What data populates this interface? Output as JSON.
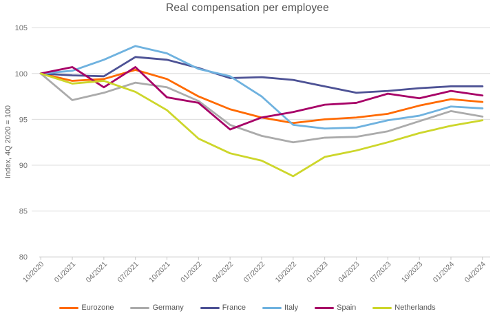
{
  "title": "Real compensation per employee",
  "chart_data": {
    "type": "line",
    "title": "Real compensation per employee",
    "xlabel": "",
    "ylabel": "Index, 4Q 2020 = 100",
    "ylim": [
      80,
      105
    ],
    "y_ticks": [
      80,
      85,
      90,
      95,
      100,
      105
    ],
    "grid": true,
    "legend_position": "bottom",
    "categories": [
      "10/2020",
      "01/2021",
      "04/2021",
      "07/2021",
      "10/2021",
      "01/2022",
      "04/2022",
      "07/2022",
      "10/2022",
      "01/2023",
      "04/2023",
      "07/2023",
      "10/2023",
      "01/2024",
      "04/2024"
    ],
    "series": [
      {
        "name": "Eurozone",
        "color": "#FF6A00",
        "values": [
          100,
          99.2,
          99.4,
          100.4,
          99.4,
          97.5,
          96.1,
          95.2,
          94.6,
          95.0,
          95.2,
          95.6,
          96.5,
          97.2,
          96.9
        ]
      },
      {
        "name": "Germany",
        "color": "#ABABAB",
        "values": [
          100,
          97.1,
          97.9,
          99.0,
          98.5,
          97.0,
          94.4,
          93.2,
          92.5,
          93.0,
          93.1,
          93.7,
          94.8,
          95.9,
          95.3
        ]
      },
      {
        "name": "France",
        "color": "#4D5295",
        "values": [
          100,
          99.8,
          99.7,
          101.8,
          101.5,
          100.6,
          99.5,
          99.6,
          99.3,
          98.6,
          97.9,
          98.1,
          98.4,
          98.6,
          98.6
        ]
      },
      {
        "name": "Italy",
        "color": "#6FB2DF",
        "values": [
          100,
          100.3,
          101.5,
          103.0,
          102.2,
          100.5,
          99.7,
          97.5,
          94.4,
          94.0,
          94.1,
          94.9,
          95.4,
          96.4,
          96.2
        ]
      },
      {
        "name": "Spain",
        "color": "#A70067",
        "values": [
          100,
          100.7,
          98.5,
          100.7,
          97.4,
          96.8,
          93.9,
          95.2,
          95.8,
          96.6,
          96.8,
          97.8,
          97.3,
          98.1,
          97.6
        ]
      },
      {
        "name": "Netherlands",
        "color": "#CDD62B",
        "values": [
          100,
          98.9,
          99.2,
          98.0,
          96.0,
          92.9,
          91.3,
          90.5,
          88.8,
          90.9,
          91.6,
          92.5,
          93.5,
          94.3,
          94.9
        ]
      }
    ]
  },
  "colors": {
    "title_text": "#535353",
    "axis_text": "#6f6f6f",
    "gridline": "#dcdcdc",
    "legend_text": "#575757"
  }
}
